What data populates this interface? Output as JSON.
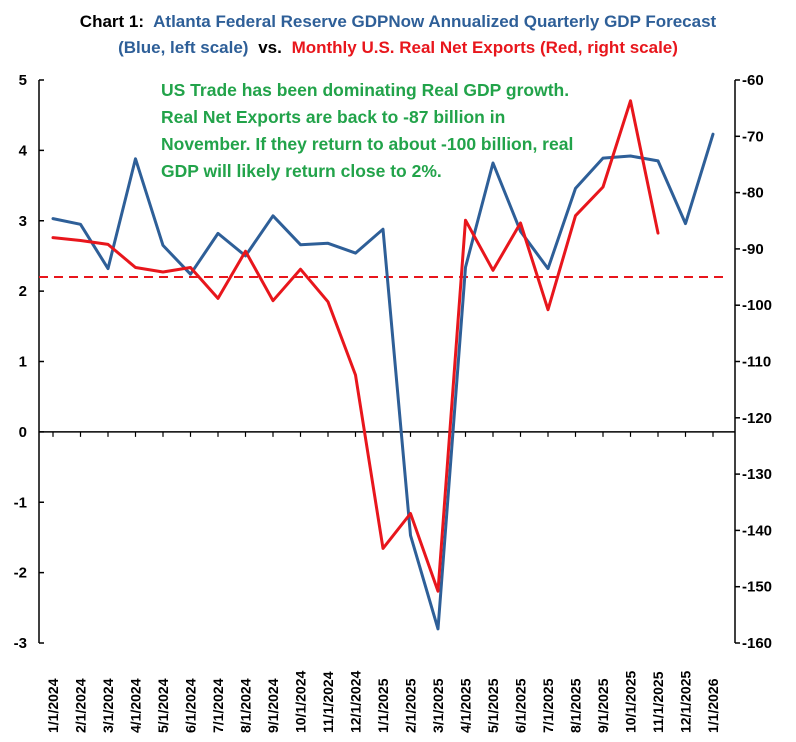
{
  "chart_data": {
    "type": "line",
    "title": {
      "prefix": "Chart 1:",
      "line1_main": "Atlanta Federal Reserve GDPNow Annualized Quarterly GDP Forecast",
      "line2_blue": "(Blue, left scale)",
      "line2_vs": "vs.",
      "line2_red": "Monthly U.S. Real Net Exports (Red, right scale)"
    },
    "categories": [
      "1/1/2024",
      "2/1/2024",
      "3/1/2024",
      "4/1/2024",
      "5/1/2024",
      "6/1/2024",
      "7/1/2024",
      "8/1/2024",
      "9/1/2024",
      "10/1/2024",
      "11/1/2024",
      "12/1/2024",
      "1/1/2025",
      "2/1/2025",
      "3/1/2025",
      "4/1/2025",
      "5/1/2025",
      "6/1/2025",
      "7/1/2025",
      "8/1/2025",
      "9/1/2025",
      "10/1/2025",
      "11/1/2025",
      "12/1/2025",
      "1/1/2026"
    ],
    "left_axis": {
      "ylim": [
        -3,
        5
      ],
      "ticks": [
        "-3",
        "-2",
        "-1",
        "0",
        "1",
        "2",
        "3",
        "4",
        "5"
      ]
    },
    "right_axis": {
      "ylim": [
        -160,
        -60
      ],
      "ticks": [
        "-160",
        "-150",
        "-140",
        "-130",
        "-120",
        "-110",
        "-100",
        "-90",
        "-80",
        "-70",
        "-60"
      ]
    },
    "series": [
      {
        "name": "GDPNow Annualized Quarterly GDP Forecast",
        "axis": "left",
        "color": "#2E5F98",
        "values": [
          3.03,
          2.95,
          2.32,
          3.88,
          2.65,
          2.24,
          2.82,
          2.5,
          3.07,
          2.66,
          2.68,
          2.54,
          2.88,
          -1.47,
          -2.8,
          2.34,
          3.82,
          2.85,
          2.32,
          3.46,
          3.89,
          3.92,
          3.85,
          2.96,
          4.23
        ]
      },
      {
        "name": "Monthly U.S. Real Net Exports",
        "axis": "right",
        "color": "#E8161C",
        "values": [
          -88.0,
          -88.5,
          -89.2,
          -93.3,
          -94.1,
          -93.3,
          -98.8,
          -90.4,
          -99.2,
          -93.6,
          -99.4,
          -112.4,
          -143.2,
          -137.0,
          -150.8,
          -84.9,
          -93.8,
          -85.4,
          -100.8,
          -84.1,
          -79.0,
          -63.7,
          -87.2,
          null,
          null
        ]
      }
    ],
    "reference_line": {
      "axis": "left",
      "value": 2.2,
      "color": "#E8161C",
      "style": "dashed"
    },
    "annotation": {
      "color": "#22A34A",
      "lines": [
        "US Trade has been dominating  Real GDP growth.",
        "Real Net Exports are back to -87 billion in",
        "November.  If they return to about -100 billion, real",
        "GDP will likely return close to 2%."
      ]
    },
    "grid": false,
    "legend": "none"
  }
}
